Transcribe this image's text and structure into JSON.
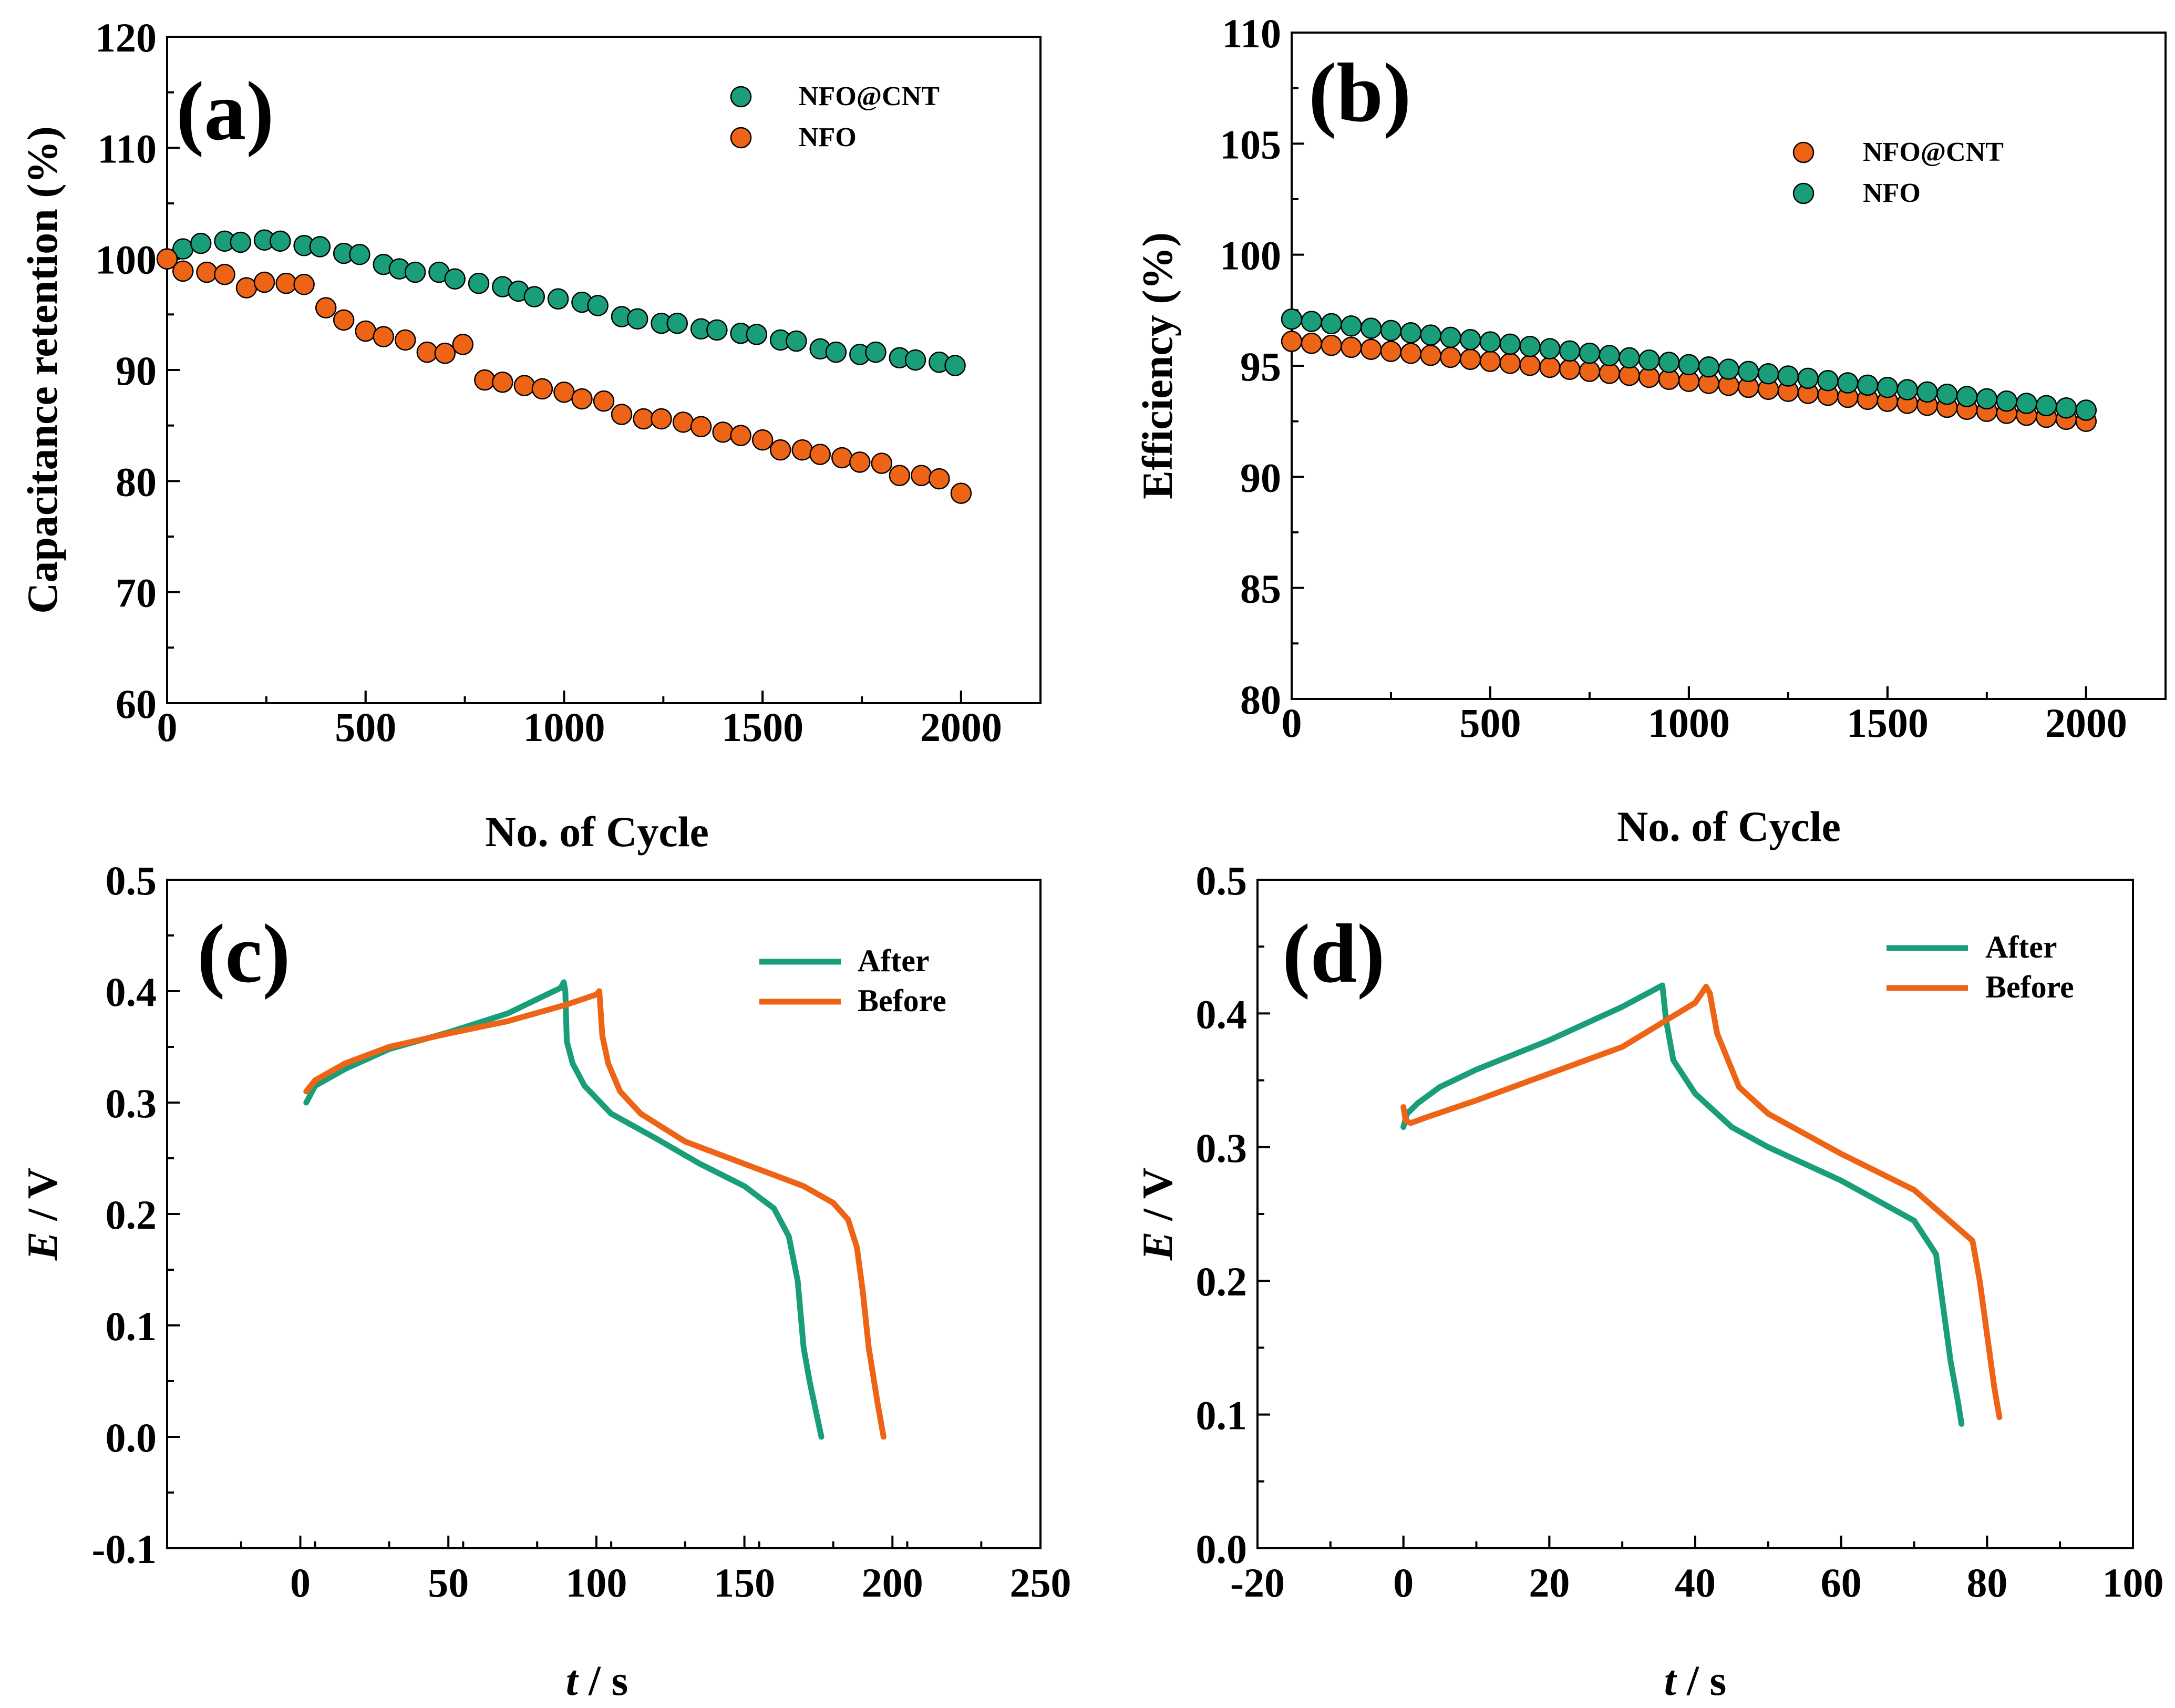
{
  "colors": {
    "green": "#1a9e7a",
    "orange": "#ee6416"
  },
  "chart_data": [
    {
      "type": "scatter",
      "panel_label": "(a)",
      "xlabel": "No. of Cycle",
      "ylabel": "Capacitance retention (%)",
      "xlim": [
        0,
        2200
      ],
      "ylim": [
        60,
        120
      ],
      "xticks": [
        0,
        500,
        1000,
        1500,
        2000
      ],
      "xtick_labels": [
        "0",
        "500",
        "1000",
        "1500",
        "2000"
      ],
      "yticks": [
        60,
        70,
        80,
        90,
        100,
        110,
        120
      ],
      "ytick_labels": [
        "60",
        "70",
        "80",
        "90",
        "100",
        "110",
        "120"
      ],
      "legend_position": "top-right",
      "series": [
        {
          "name": "NFO@CNT",
          "color": "green",
          "x": [
            0,
            40,
            85,
            145,
            185,
            245,
            285,
            345,
            385,
            445,
            485,
            545,
            585,
            625,
            685,
            725,
            785,
            845,
            885,
            925,
            985,
            1045,
            1085,
            1145,
            1185,
            1245,
            1285,
            1345,
            1385,
            1445,
            1485,
            1545,
            1585,
            1645,
            1685,
            1745,
            1785,
            1845,
            1885,
            1945,
            1985
          ],
          "y": [
            100,
            100.9,
            101.4,
            101.6,
            101.5,
            101.7,
            101.6,
            101.2,
            101.1,
            100.5,
            100.4,
            99.5,
            99.1,
            98.8,
            98.8,
            98.2,
            97.8,
            97.5,
            97.1,
            96.6,
            96.4,
            96.1,
            95.8,
            94.8,
            94.6,
            94.2,
            94.2,
            93.7,
            93.6,
            93.3,
            93.2,
            92.7,
            92.6,
            91.9,
            91.6,
            91.4,
            91.6,
            91.1,
            90.9,
            90.7,
            90.4
          ]
        },
        {
          "name": "NFO",
          "color": "orange",
          "x": [
            0,
            40,
            100,
            145,
            200,
            245,
            300,
            345,
            400,
            445,
            500,
            545,
            600,
            655,
            700,
            745,
            800,
            845,
            900,
            945,
            1000,
            1045,
            1100,
            1145,
            1200,
            1245,
            1300,
            1345,
            1400,
            1445,
            1500,
            1545,
            1600,
            1645,
            1700,
            1745,
            1800,
            1845,
            1900,
            1945,
            2000
          ],
          "y": [
            100,
            98.9,
            98.8,
            98.6,
            97.4,
            97.9,
            97.8,
            97.7,
            95.6,
            94.5,
            93.5,
            93,
            92.7,
            91.6,
            91.5,
            92.3,
            89.1,
            88.9,
            88.6,
            88.3,
            88,
            87.4,
            87.2,
            86,
            85.6,
            85.6,
            85.3,
            84.9,
            84.4,
            84.1,
            83.7,
            82.8,
            82.8,
            82.4,
            82.1,
            81.7,
            81.6,
            80.5,
            80.5,
            80.2,
            78.9
          ]
        }
      ]
    },
    {
      "type": "scatter",
      "panel_label": "(b)",
      "xlabel": "No. of Cycle",
      "ylabel": "Efficiency (%)",
      "xlim": [
        0,
        2200
      ],
      "ylim": [
        80,
        110
      ],
      "xticks": [
        0,
        500,
        1000,
        1500,
        2000
      ],
      "xtick_labels": [
        "0",
        "500",
        "1000",
        "1500",
        "2000"
      ],
      "yticks": [
        80,
        85,
        90,
        95,
        100,
        105,
        110
      ],
      "ytick_labels": [
        "80",
        "85",
        "90",
        "95",
        "100",
        "105",
        "110"
      ],
      "legend_position": "top-right",
      "series": [
        {
          "name": "NFO@CNT",
          "color": "orange",
          "x_start": 0,
          "x_end": 2000,
          "n_points": 41,
          "y_start": 96.1,
          "y_end": 92.5
        },
        {
          "name": "NFO",
          "color": "green",
          "x_start": 0,
          "x_end": 2000,
          "n_points": 41,
          "y_start": 97.1,
          "y_end": 93.0
        }
      ]
    },
    {
      "type": "line",
      "panel_label": "(c)",
      "xlabel_italic": "t",
      "xlabel_unit": " / s",
      "ylabel_italic": "E",
      "ylabel_unit": " / V",
      "xlim": [
        -45,
        250
      ],
      "ylim": [
        -0.1,
        0.5
      ],
      "xticks": [
        0,
        50,
        100,
        150,
        200,
        250
      ],
      "xtick_labels": [
        "0",
        "50",
        "100",
        "150",
        "200",
        "250"
      ],
      "yticks": [
        -0.1,
        0.0,
        0.1,
        0.2,
        0.3,
        0.4,
        0.5
      ],
      "ytick_labels": [
        "-0.1",
        "0.0",
        "0.1",
        "0.2",
        "0.3",
        "0.4",
        "0.5"
      ],
      "legend_position": "top-right",
      "series": [
        {
          "name": "After",
          "color": "green",
          "x": [
            2,
            5,
            15,
            30,
            50,
            70,
            88,
            89,
            89.5,
            90,
            92,
            96,
            105,
            120,
            135,
            150,
            160,
            165,
            168,
            170,
            172,
            174,
            176
          ],
          "y": [
            0.3,
            0.315,
            0.33,
            0.348,
            0.363,
            0.38,
            0.403,
            0.408,
            0.4,
            0.355,
            0.335,
            0.315,
            0.29,
            0.268,
            0.245,
            0.225,
            0.205,
            0.18,
            0.14,
            0.08,
            0.05,
            0.025,
            0.0
          ]
        },
        {
          "name": "Before",
          "color": "orange",
          "x": [
            2,
            5,
            15,
            30,
            50,
            70,
            90,
            100,
            101,
            102,
            104,
            108,
            115,
            130,
            150,
            170,
            180,
            185,
            188,
            190,
            192,
            195,
            197
          ],
          "y": [
            0.31,
            0.32,
            0.335,
            0.35,
            0.362,
            0.373,
            0.388,
            0.397,
            0.4,
            0.36,
            0.335,
            0.31,
            0.29,
            0.265,
            0.245,
            0.225,
            0.21,
            0.195,
            0.17,
            0.13,
            0.08,
            0.03,
            0.0
          ]
        }
      ]
    },
    {
      "type": "line",
      "panel_label": "(d)",
      "xlabel_italic": "t",
      "xlabel_unit": " / s",
      "ylabel_italic": "E",
      "ylabel_unit": " / V",
      "xlim": [
        -20,
        100
      ],
      "ylim": [
        0.0,
        0.5
      ],
      "xticks": [
        -20,
        0,
        20,
        40,
        60,
        80,
        100
      ],
      "xtick_labels": [
        "-20",
        "0",
        "20",
        "40",
        "60",
        "80",
        "100"
      ],
      "yticks": [
        0.0,
        0.1,
        0.2,
        0.3,
        0.4,
        0.5
      ],
      "ytick_labels": [
        "0.0",
        "0.1",
        "0.2",
        "0.3",
        "0.4",
        "0.5"
      ],
      "legend_position": "top-right",
      "series": [
        {
          "name": "After",
          "color": "green",
          "x": [
            0,
            0.5,
            2,
            5,
            10,
            20,
            30,
            35.5,
            36,
            37,
            40,
            45,
            50,
            60,
            70,
            73,
            74,
            75,
            76,
            76.5
          ],
          "y": [
            0.315,
            0.325,
            0.333,
            0.345,
            0.358,
            0.38,
            0.405,
            0.421,
            0.395,
            0.365,
            0.34,
            0.315,
            0.3,
            0.275,
            0.245,
            0.22,
            0.18,
            0.14,
            0.11,
            0.093
          ]
        },
        {
          "name": "Before",
          "color": "orange",
          "x": [
            0,
            0.3,
            1,
            3,
            10,
            20,
            30,
            40,
            41.5,
            42,
            43,
            46,
            50,
            60,
            70,
            78,
            79,
            80,
            81,
            81.7
          ],
          "y": [
            0.33,
            0.32,
            0.318,
            0.322,
            0.335,
            0.355,
            0.375,
            0.408,
            0.42,
            0.415,
            0.385,
            0.345,
            0.325,
            0.295,
            0.268,
            0.23,
            0.2,
            0.16,
            0.12,
            0.098
          ]
        }
      ]
    }
  ]
}
